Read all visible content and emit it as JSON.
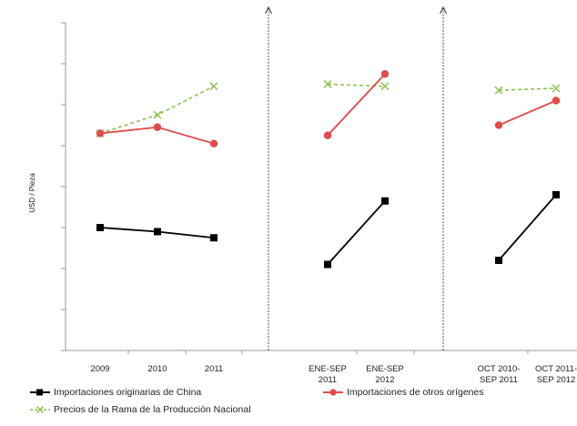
{
  "chart_data": {
    "type": "line",
    "ylabel": "USD / Pieza",
    "legend_position": "bottom",
    "grid": false,
    "ylim": [
      0,
      8
    ],
    "panels": [
      {
        "categories": [
          "2009",
          "2010",
          "2011"
        ],
        "series": [
          {
            "name": "Importaciones originarias de China",
            "values": [
              3.0,
              2.9,
              2.75
            ]
          },
          {
            "name": "Importaciones de otros orígenes",
            "values": [
              5.3,
              5.45,
              5.05
            ]
          },
          {
            "name": "Precios de la Rama de la Producción Nacional",
            "values": [
              5.3,
              5.75,
              6.45
            ]
          }
        ]
      },
      {
        "categories": [
          "ENE-SEP 2011",
          "ENE-SEP 2012"
        ],
        "series": [
          {
            "name": "Importaciones originarias de China",
            "values": [
              2.1,
              3.65
            ]
          },
          {
            "name": "Importaciones de otros orígenes",
            "values": [
              5.25,
              6.75
            ]
          },
          {
            "name": "Precios de la Rama de la Producción Nacional",
            "values": [
              6.5,
              6.45
            ]
          }
        ]
      },
      {
        "categories": [
          "OCT 2010-SEP 2011",
          "OCT 2011-SEP 2012"
        ],
        "series": [
          {
            "name": "Importaciones originarias de China",
            "values": [
              2.2,
              3.8
            ]
          },
          {
            "name": "Importaciones de otros orígenes",
            "values": [
              5.5,
              6.1
            ]
          },
          {
            "name": "Precios de la Rama de la Producción Nacional",
            "values": [
              6.35,
              6.4
            ]
          }
        ]
      }
    ],
    "series_styles": [
      {
        "name": "Importaciones originarias de China",
        "color": "#000000",
        "marker": "square",
        "dash": "solid"
      },
      {
        "name": "Importaciones de otros orígenes",
        "color": "#e34a4a",
        "marker": "circle",
        "dash": "solid"
      },
      {
        "name": "Precios de la Rama de la Producción Nacional",
        "color": "#8bc34a",
        "marker": "x",
        "dash": "dashed"
      }
    ]
  },
  "legend": {
    "china": "Importaciones originarias de China",
    "otros": "Importaciones de otros orígenes",
    "rama": "Precios de la Rama de la Producción Nacional"
  },
  "ticks": {
    "p1": [
      "2009",
      "2010",
      "2011"
    ],
    "p2": [
      [
        "ENE-SEP",
        "2011"
      ],
      [
        "ENE-SEP",
        "2012"
      ]
    ],
    "p3": [
      [
        "OCT 2010-",
        "SEP 2011"
      ],
      [
        "OCT 2011-",
        "SEP 2012"
      ]
    ]
  }
}
